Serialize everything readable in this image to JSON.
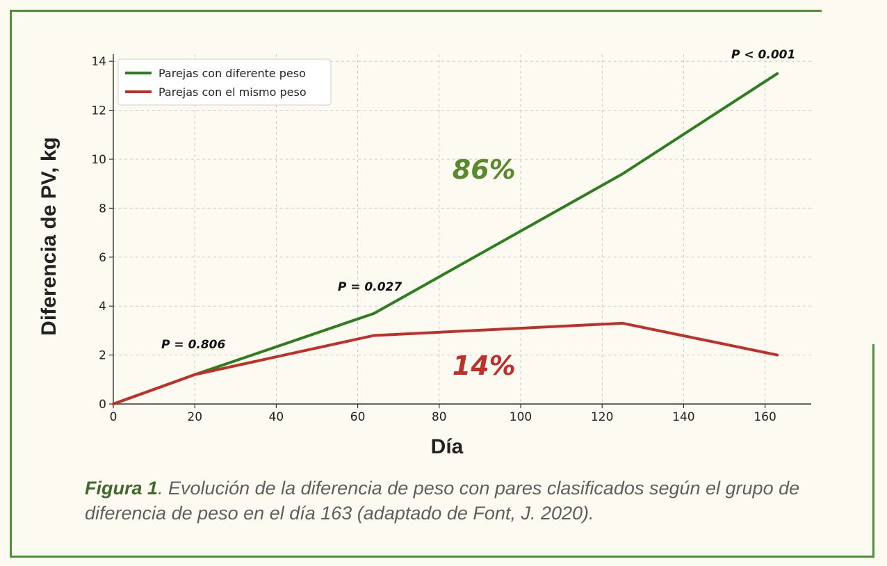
{
  "chart_data": {
    "type": "line",
    "xlabel": "Día",
    "ylabel": "Diferencia de PV, kg",
    "xlim": [
      0,
      172
    ],
    "ylim": [
      0,
      14.4
    ],
    "xticks": [
      0,
      20,
      40,
      60,
      80,
      100,
      120,
      140,
      160
    ],
    "yticks": [
      0,
      2,
      4,
      6,
      8,
      10,
      12,
      14
    ],
    "grid": true,
    "legend_position": "top-left",
    "series": [
      {
        "name": "Parejas con diferente peso",
        "color": "#2e7d1f",
        "x": [
          0,
          20,
          64,
          125,
          163
        ],
        "y": [
          0,
          1.2,
          3.7,
          9.4,
          13.5
        ]
      },
      {
        "name": "Parejas con el mismo peso",
        "color": "#c0302a",
        "x": [
          0,
          20,
          64,
          125,
          163
        ],
        "y": [
          0,
          1.2,
          2.8,
          3.3,
          2.0
        ]
      }
    ],
    "annotations": [
      {
        "text": "P = 0.806",
        "x": 20,
        "y": 1.2
      },
      {
        "text": "P = 0.027",
        "x": 64,
        "y": 3.7
      },
      {
        "text": "P < 0.001",
        "x": 163,
        "y": 13.5
      },
      {
        "text": "86%",
        "color": "#5a8a2e",
        "x": 91,
        "y": 9.2
      },
      {
        "text": "14%",
        "color": "#c0302a",
        "x": 91,
        "y": 1.2
      }
    ]
  },
  "caption": {
    "label": "Figura 1",
    "text": ". Evolución de la diferencia de peso con pares clasificados según el grupo de diferencia de peso en el día 163 (adaptado de Font, J. 2020)."
  }
}
